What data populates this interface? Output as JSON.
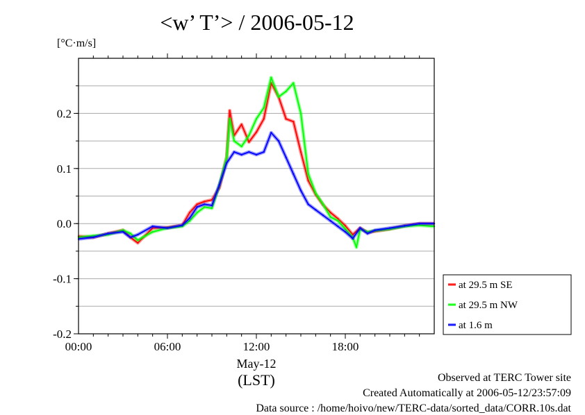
{
  "chart_data": {
    "type": "line",
    "title": "<w’ T’> / 2006-05-12",
    "ylabel": "[°C·m/s]",
    "xlabel": "May-12",
    "xlabel_sub": "(LST)",
    "ylim": [
      -0.2,
      0.3
    ],
    "xlim": [
      0,
      24
    ],
    "yticks": [
      -0.2,
      -0.1,
      0.0,
      0.1,
      0.2
    ],
    "ytick_labels": [
      "-0.2",
      "-0.1",
      "0.0",
      "0.1",
      "0.2"
    ],
    "xticks": [
      0,
      6,
      12,
      18
    ],
    "xtick_labels": [
      "00:00",
      "06:00",
      "12:00",
      "18:00"
    ],
    "grid": true,
    "legend_position": "right",
    "series": [
      {
        "name": "at 29.5 m SE",
        "color": "#ff0000",
        "x": [
          0,
          1,
          2,
          3,
          3.5,
          4,
          5,
          6,
          7,
          7.5,
          8,
          8.5,
          9,
          9.5,
          10,
          10.2,
          10.5,
          11,
          11.5,
          12,
          12.5,
          13,
          13.5,
          14,
          14.5,
          15,
          15.5,
          16,
          16.5,
          17,
          17.5,
          18,
          18.5,
          19,
          19.5,
          20,
          21,
          22,
          23,
          24
        ],
        "values": [
          -0.023,
          -0.025,
          -0.018,
          -0.012,
          -0.025,
          -0.035,
          -0.008,
          -0.007,
          -0.003,
          0.02,
          0.035,
          0.04,
          0.043,
          0.065,
          0.12,
          0.205,
          0.16,
          0.18,
          0.148,
          0.166,
          0.19,
          0.255,
          0.23,
          0.19,
          0.185,
          0.13,
          0.078,
          0.053,
          0.034,
          0.02,
          0.009,
          -0.004,
          -0.02,
          -0.008,
          -0.016,
          -0.014,
          -0.01,
          -0.004,
          0.0,
          0.0
        ]
      },
      {
        "name": "at 29.5 m NW",
        "color": "#00ff00",
        "x": [
          0,
          1,
          2,
          3,
          3.5,
          4,
          5,
          6,
          7,
          7.5,
          8,
          8.5,
          9,
          9.5,
          10,
          10.2,
          10.5,
          11,
          11.5,
          12,
          12.5,
          13,
          13.5,
          14,
          14.5,
          15,
          15.5,
          16,
          16.5,
          17,
          17.5,
          18,
          18.5,
          18.75,
          19,
          19.5,
          20,
          21,
          22,
          23,
          24
        ],
        "values": [
          -0.025,
          -0.022,
          -0.02,
          -0.012,
          -0.018,
          -0.03,
          -0.015,
          -0.008,
          -0.005,
          0.005,
          0.02,
          0.03,
          0.028,
          0.07,
          0.12,
          0.19,
          0.15,
          0.14,
          0.16,
          0.19,
          0.21,
          0.265,
          0.23,
          0.24,
          0.255,
          0.2,
          0.09,
          0.055,
          0.035,
          0.012,
          0.005,
          -0.01,
          -0.025,
          -0.043,
          -0.01,
          -0.015,
          -0.013,
          -0.01,
          -0.005,
          -0.003,
          -0.005
        ]
      },
      {
        "name": "at 1.6 m",
        "color": "#0000ff",
        "x": [
          0,
          1,
          2,
          3,
          3.5,
          4,
          5,
          6,
          7,
          7.5,
          8,
          8.5,
          9,
          9.5,
          10,
          10.5,
          11,
          11.5,
          12,
          12.5,
          13,
          13.5,
          14,
          14.5,
          15,
          15.5,
          16,
          16.5,
          17,
          17.5,
          18,
          18.5,
          19,
          19.5,
          20,
          21,
          22,
          23,
          24
        ],
        "values": [
          -0.028,
          -0.025,
          -0.018,
          -0.015,
          -0.025,
          -0.02,
          -0.005,
          -0.008,
          -0.003,
          0.01,
          0.03,
          0.035,
          0.033,
          0.07,
          0.11,
          0.13,
          0.125,
          0.13,
          0.125,
          0.13,
          0.165,
          0.15,
          0.12,
          0.09,
          0.06,
          0.035,
          0.025,
          0.015,
          0.005,
          -0.005,
          -0.015,
          -0.027,
          -0.008,
          -0.018,
          -0.012,
          -0.008,
          -0.004,
          0.0,
          0.0
        ]
      }
    ]
  },
  "footer": {
    "line1": "Observed at TERC Tower site",
    "line2": "Created Automatically at 2006-05-12/23:57:09",
    "line3": "Data source : /home/hoivo/new/TERC-data/sorted_data/CORR.10s.dat"
  }
}
